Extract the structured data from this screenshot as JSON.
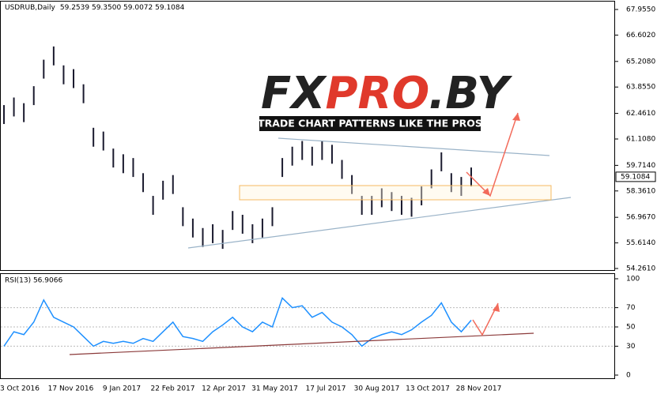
{
  "chart_data": [
    {
      "type": "hl-bars",
      "title": "USDRUB,Daily",
      "ohlc_header": "59.2539 59.3500 59.0072 59.1084",
      "watermark": [
        "FX",
        "PRO",
        ".BY"
      ],
      "tagline": "TRADE CHART PATTERNS LIKE THE PROS",
      "last_price": 59.1084,
      "color": "#1a1a2e",
      "ylim": [
        54.261,
        67.955
      ],
      "yticks": [
        {
          "value": 67.955,
          "label": "67.9550"
        },
        {
          "value": 66.602,
          "label": "66.6020"
        },
        {
          "value": 65.208,
          "label": "65.2080"
        },
        {
          "value": 63.855,
          "label": "63.8550"
        },
        {
          "value": 62.461,
          "label": "62.4610"
        },
        {
          "value": 61.108,
          "label": "61.1080"
        },
        {
          "value": 59.714,
          "label": "59.7140"
        },
        {
          "value": 58.361,
          "label": "58.3610"
        },
        {
          "value": 56.967,
          "label": "56.9670"
        },
        {
          "value": 55.614,
          "label": "55.6140"
        },
        {
          "value": 54.261,
          "label": "54.2610"
        }
      ],
      "highs": [
        62.9,
        63.3,
        63.0,
        63.9,
        65.3,
        66.0,
        65.0,
        64.8,
        64.0,
        61.7,
        61.5,
        60.6,
        60.3,
        60.1,
        59.3,
        58.1,
        58.9,
        59.2,
        57.5,
        56.9,
        56.4,
        56.6,
        56.3,
        57.3,
        57.1,
        56.6,
        56.9,
        57.5,
        60.1,
        60.7,
        61.0,
        60.7,
        61.0,
        60.8,
        60.0,
        59.2,
        58.1,
        58.1,
        58.5,
        58.3,
        58.1,
        58.0,
        58.6,
        59.5,
        60.4,
        59.3,
        59.1,
        59.6
      ],
      "lows": [
        61.9,
        62.3,
        62.0,
        62.9,
        64.3,
        65.0,
        64.0,
        63.8,
        63.0,
        60.7,
        60.5,
        59.6,
        59.3,
        59.1,
        58.3,
        57.1,
        57.9,
        58.2,
        56.5,
        55.9,
        55.4,
        55.6,
        55.3,
        56.3,
        56.1,
        55.6,
        55.9,
        56.5,
        59.1,
        59.7,
        60.0,
        59.7,
        60.0,
        59.8,
        59.0,
        58.2,
        57.1,
        57.1,
        57.5,
        57.3,
        57.1,
        57.0,
        57.6,
        58.5,
        59.4,
        58.3,
        58.1,
        58.6
      ],
      "x_labels": [
        "3 Oct 2016",
        "17 Nov 2016",
        "9 Jan 2017",
        "22 Feb 2017",
        "12 Apr 2017",
        "31 May 2017",
        "17 Jul 2017",
        "30 Aug 2017",
        "13 Oct 2017",
        "28 Nov 2017"
      ]
    },
    {
      "type": "line",
      "title": "RSI(13) 56.9066",
      "color": "#1e90ff",
      "ylim": [
        0,
        100
      ],
      "yticks": [
        100,
        70,
        50,
        30,
        0
      ],
      "values": [
        30,
        45,
        42,
        55,
        78,
        60,
        55,
        50,
        40,
        30,
        35,
        33,
        35,
        33,
        38,
        35,
        45,
        55,
        40,
        38,
        35,
        45,
        52,
        60,
        50,
        45,
        55,
        50,
        80,
        70,
        72,
        60,
        65,
        55,
        50,
        42,
        30,
        38,
        42,
        45,
        42,
        47,
        55,
        62,
        75,
        55,
        45,
        57
      ]
    }
  ]
}
